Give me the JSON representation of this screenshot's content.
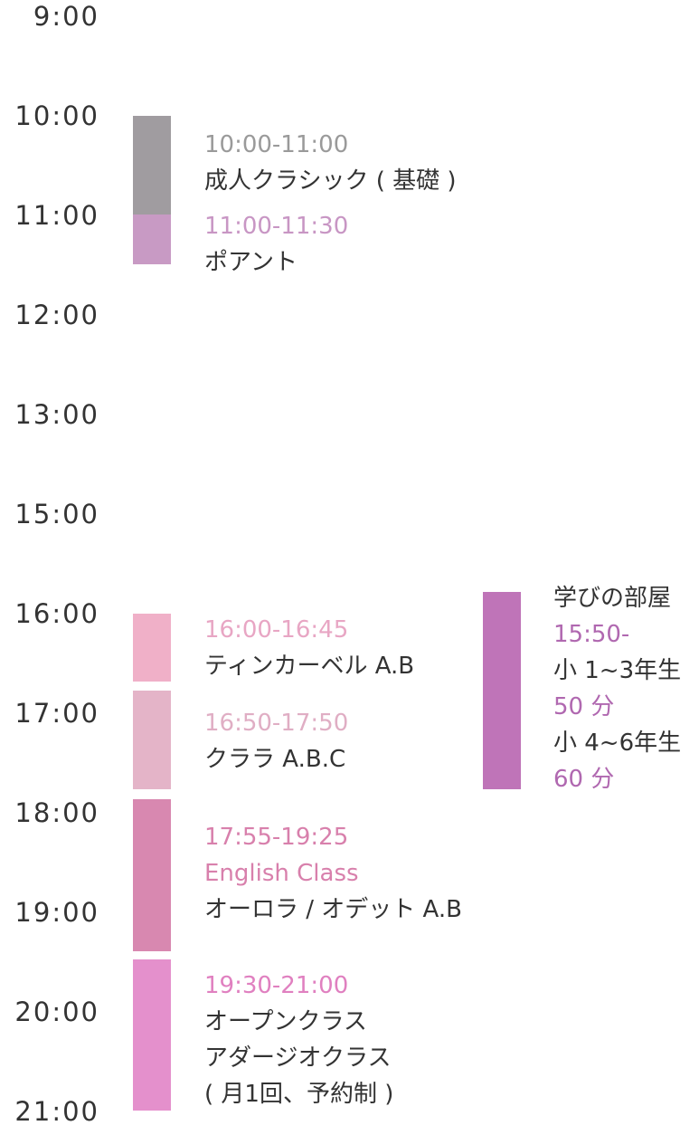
{
  "times": [
    "9:00",
    "10:00",
    "11:00",
    "12:00",
    "13:00",
    "15:00",
    "16:00",
    "17:00",
    "18:00",
    "19:00",
    "20:00",
    "21:00"
  ],
  "classes": [
    {
      "time": "10:00-11:00",
      "color": "#a09ca0",
      "text_color": "#9a9a9a",
      "lines": [
        "成人クラシック ( 基礎 )"
      ]
    },
    {
      "time": "11:00-11:30",
      "color": "#c89ac4",
      "text_color": "#c896c4",
      "lines": [
        "ポアント"
      ]
    },
    {
      "time": "16:00-16:45",
      "color": "#f0b0c8",
      "text_color": "#e8a6c4",
      "lines": [
        "ティンカーベル A.B"
      ]
    },
    {
      "time": "16:50-17:50",
      "color": "#e4b4c8",
      "text_color": "#e0aec4",
      "lines": [
        "クララ A.B.C"
      ]
    },
    {
      "time": "17:55-19:25",
      "color": "#d888b0",
      "text_color": "#d880ac",
      "subtitle": "English Class",
      "lines": [
        "オーロラ / オデット A.B"
      ]
    },
    {
      "time": "19:30-21:00",
      "color": "#e490cc",
      "text_color": "#e080c0",
      "lines": [
        "オープンクラス",
        "アダージオクラス",
        "( 月1回、予約制 )"
      ]
    }
  ],
  "side": {
    "title": "学びの部屋",
    "start": "15:50-",
    "color": "#bf74b8",
    "text_color": "#b068b0",
    "groups": [
      {
        "grade": "小 1~3年生",
        "duration": "50 分"
      },
      {
        "grade": "小 4~6年生",
        "duration": "60 分"
      }
    ]
  }
}
